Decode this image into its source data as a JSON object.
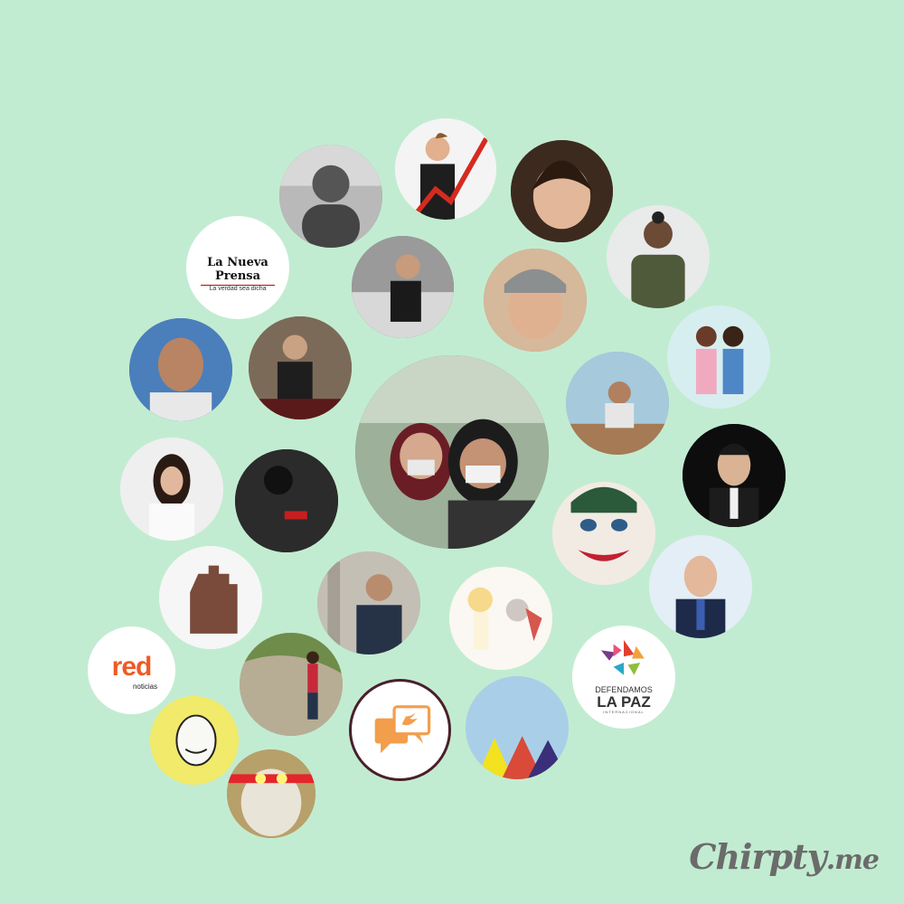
{
  "logos": {
    "nueva_prensa_title": "La Nueva Prensa",
    "nueva_prensa_tagline": "La verdad sea dicha",
    "red_brand": "red",
    "red_sub": "noticias",
    "defendamos_line1": "DEFENDAMOS",
    "defendamos_line2": "LA PAZ",
    "defendamos_line3": "INTERNACIONAL"
  },
  "watermark": {
    "main": "Chirpty",
    "tld": ".me"
  },
  "colors": {
    "background": "#c2ecd1",
    "red_logo": "#ef5a24",
    "chat_icon_orange": "#f29e4c",
    "chat_icon_white": "#ffffff",
    "twitter_bird": "#f29e4c"
  },
  "icons": {
    "chat_bubbles": "chat-bubbles-twitter-icon",
    "mountains": "colored-mountains-icon"
  }
}
